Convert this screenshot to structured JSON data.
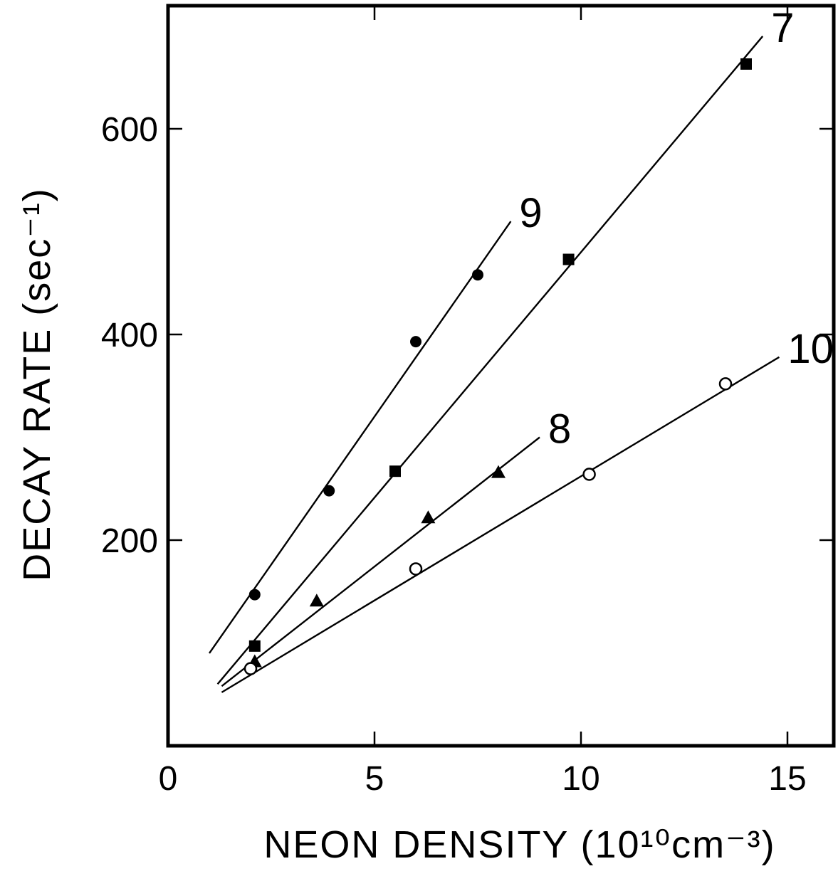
{
  "chart_data": {
    "type": "scatter",
    "xlabel": "NEON DENSITY (10¹⁰cm⁻³)",
    "ylabel": "DECAY RATE (sec⁻¹)",
    "xlim": [
      0,
      16
    ],
    "ylim": [
      0,
      700
    ],
    "xticks": [
      0,
      5,
      10,
      15
    ],
    "yticks": [
      200,
      400,
      600
    ],
    "grid": false,
    "series": [
      {
        "name": "9",
        "marker": "filled-circle",
        "points": [
          [
            2.1,
            147
          ],
          [
            3.9,
            248
          ],
          [
            6.0,
            393
          ],
          [
            7.5,
            458
          ]
        ],
        "fit_line": [
          [
            1.0,
            90
          ],
          [
            8.3,
            510
          ]
        ]
      },
      {
        "name": "7",
        "marker": "filled-square",
        "points": [
          [
            2.1,
            97
          ],
          [
            5.5,
            267
          ],
          [
            9.7,
            473
          ],
          [
            14.0,
            663
          ]
        ],
        "fit_line": [
          [
            1.2,
            60
          ],
          [
            14.4,
            690
          ]
        ]
      },
      {
        "name": "8",
        "marker": "filled-triangle",
        "points": [
          [
            2.1,
            82
          ],
          [
            3.6,
            141
          ],
          [
            6.3,
            222
          ],
          [
            8.0,
            266
          ]
        ],
        "fit_line": [
          [
            1.3,
            58
          ],
          [
            9.0,
            300
          ]
        ]
      },
      {
        "name": "10",
        "marker": "open-circle",
        "points": [
          [
            2.0,
            75
          ],
          [
            6.0,
            172
          ],
          [
            10.2,
            264
          ],
          [
            13.5,
            352
          ]
        ],
        "fit_line": [
          [
            1.3,
            52
          ],
          [
            14.8,
            378
          ]
        ]
      }
    ]
  }
}
